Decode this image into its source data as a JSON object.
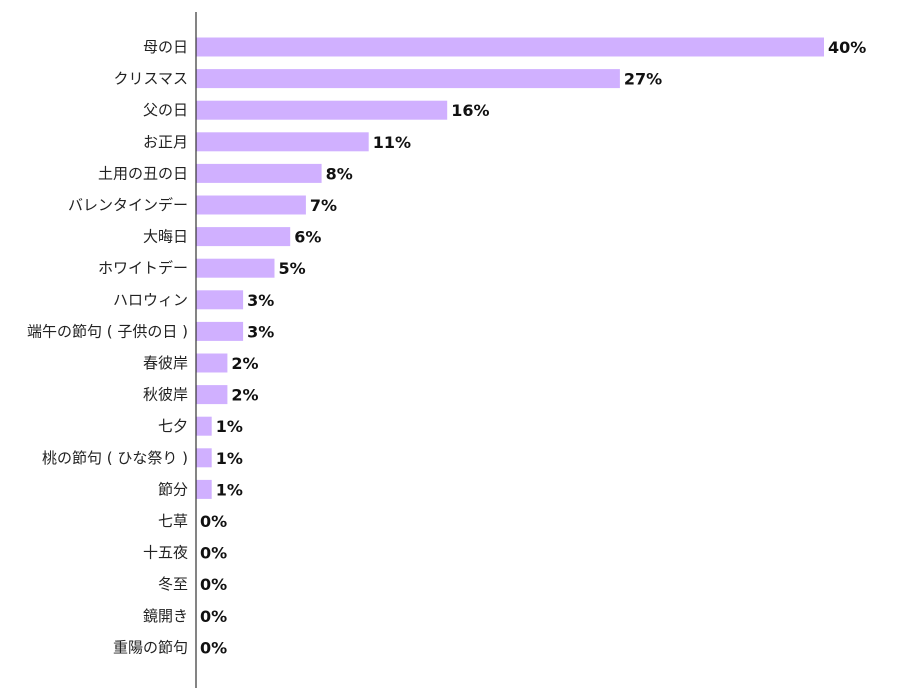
{
  "chart_data": {
    "type": "bar",
    "orientation": "horizontal",
    "categories": [
      "母の日",
      "クリスマス",
      "父の日",
      "お正月",
      "土用の丑の日",
      "バレンタインデー",
      "大晦日",
      "ホワイトデー",
      "ハロウィン",
      "端午の節句 ( 子供の日 )",
      "春彼岸",
      "秋彼岸",
      "七夕",
      "桃の節句 ( ひな祭り )",
      "節分",
      "七草",
      "十五夜",
      "冬至",
      "鏡開き",
      "重陽の節句"
    ],
    "values": [
      40,
      27,
      16,
      11,
      8,
      7,
      6,
      5,
      3,
      3,
      2,
      2,
      1,
      1,
      1,
      0,
      0,
      0,
      0,
      0
    ],
    "value_labels": [
      "40%",
      "27%",
      "16%",
      "11%",
      "8%",
      "7%",
      "6%",
      "5%",
      "3%",
      "3%",
      "2%",
      "2%",
      "1%",
      "1%",
      "1%",
      "0%",
      "0%",
      "0%",
      "0%",
      "0%"
    ],
    "unit": "%",
    "xlim": [
      0,
      40
    ],
    "grid": false,
    "legend": "none",
    "bar_color": "#d0b0ff",
    "axis_color": "#333333"
  }
}
